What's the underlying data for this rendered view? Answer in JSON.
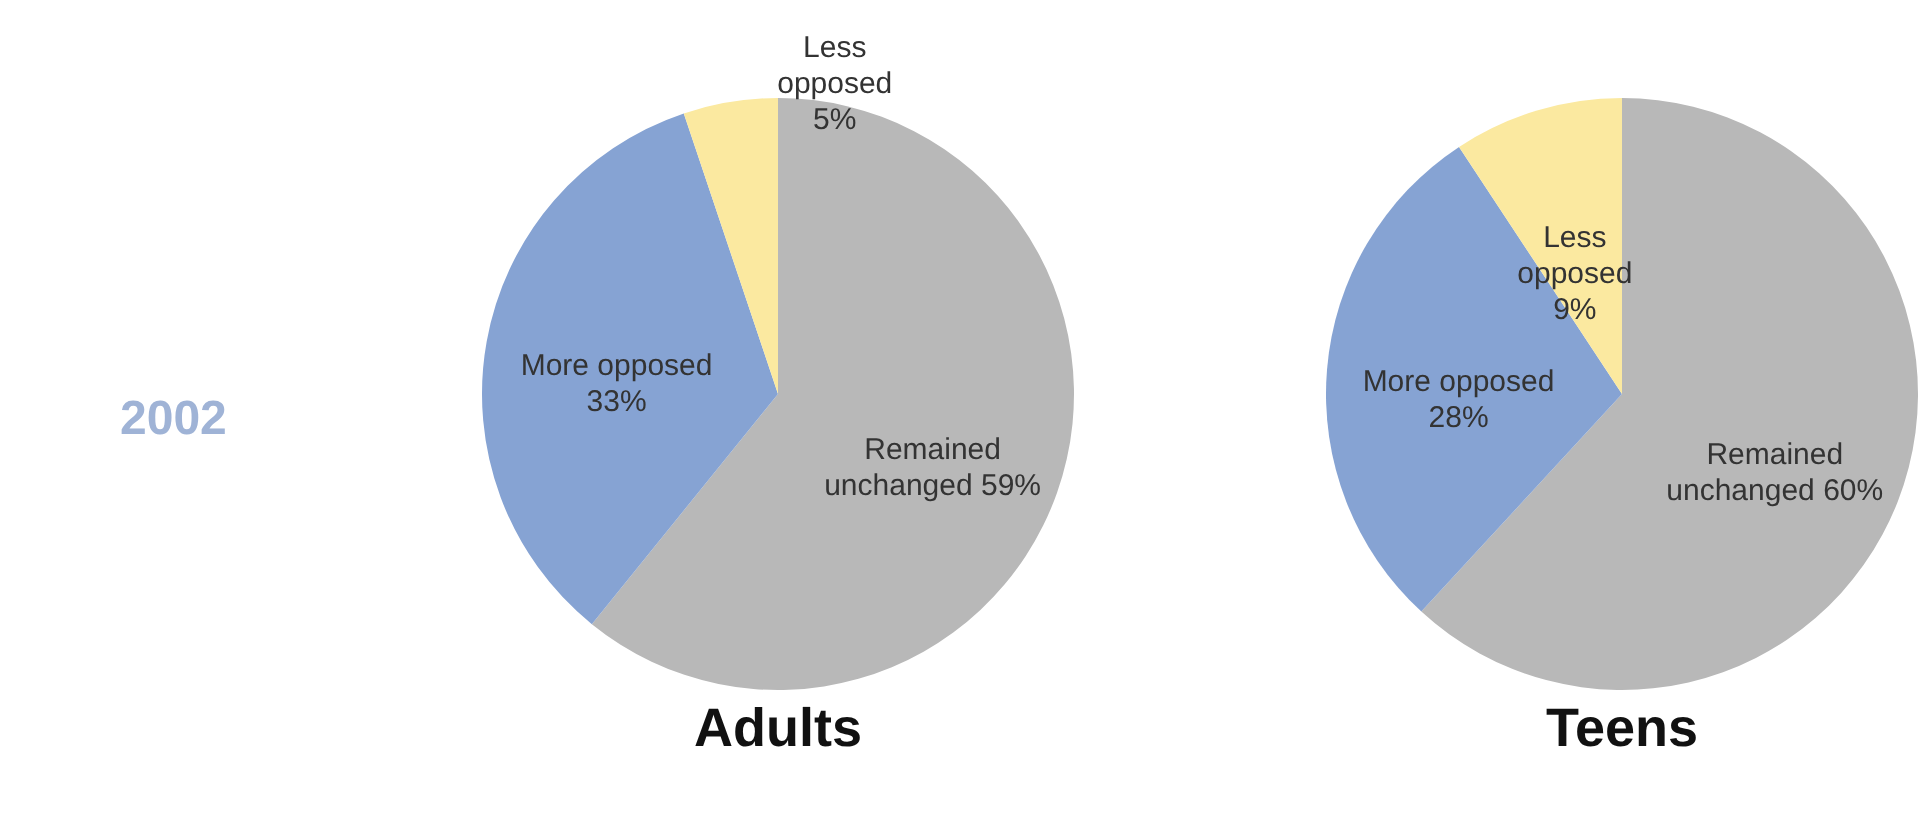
{
  "chart_data": [
    {
      "type": "pie",
      "title": "Adults",
      "annotations": [
        "2002"
      ],
      "categories": [
        "Remained unchanged",
        "More opposed",
        "Less opposed"
      ],
      "values": [
        59,
        33,
        5
      ],
      "value_labels": [
        "59%",
        "33%",
        "5%"
      ],
      "colors": [
        "#b8b8b8",
        "#86a3d3",
        "#fbe9a0"
      ]
    },
    {
      "type": "pie",
      "title": "Teens",
      "categories": [
        "Remained unchanged",
        "More opposed",
        "Less opposed"
      ],
      "values": [
        60,
        28,
        9
      ],
      "value_labels": [
        "60%",
        "28%",
        "9%"
      ],
      "colors": [
        "#b8b8b8",
        "#86a3d3",
        "#fbe9a0"
      ]
    }
  ]
}
